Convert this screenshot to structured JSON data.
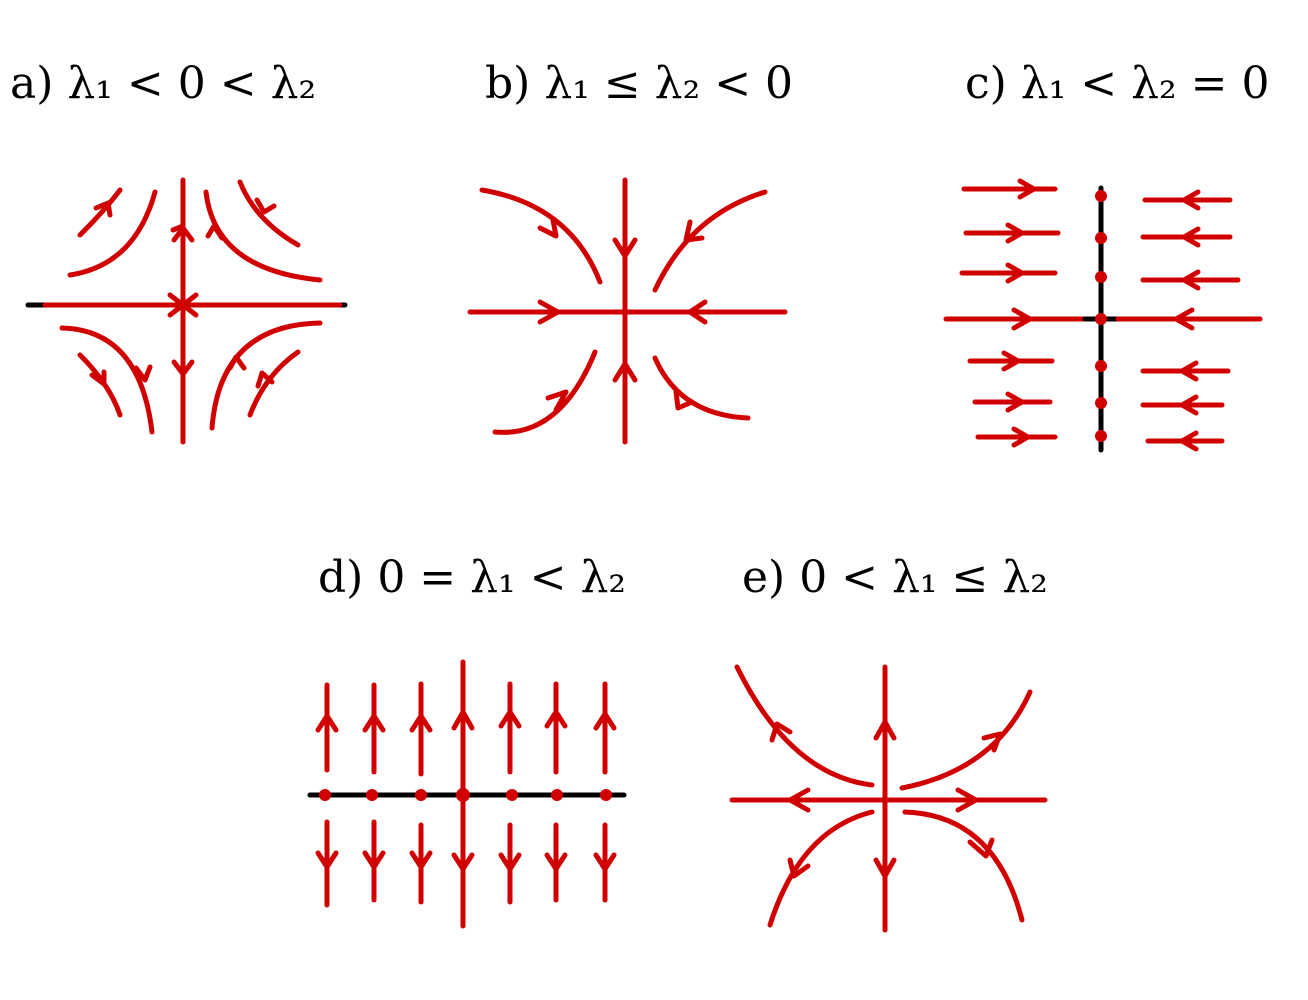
{
  "panels": [
    {
      "id": "a",
      "label": "a) λ₁ < 0 < λ₂"
    },
    {
      "id": "b",
      "label": "b) λ₁ ≤ λ₂ < 0"
    },
    {
      "id": "c",
      "label": "c) λ₁ < λ₂ = 0"
    },
    {
      "id": "d",
      "label": "d) 0 = λ₁ < λ₂"
    },
    {
      "id": "e",
      "label": "e) 0 < λ₁ ≤ λ₂"
    }
  ],
  "colors": {
    "trajectory": "#d10000",
    "axis": "#000000",
    "background": "#ffffff"
  }
}
